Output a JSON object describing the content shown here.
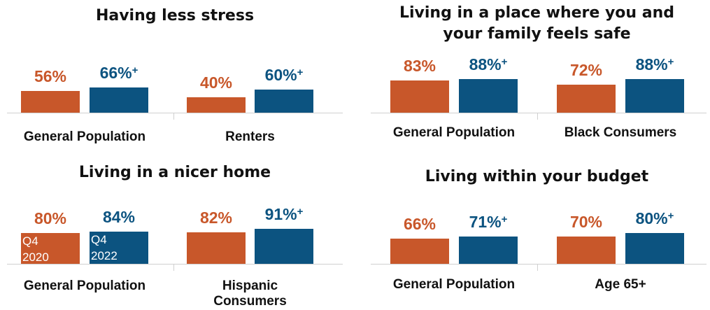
{
  "colors": {
    "q4_2020": "#c8572a",
    "q4_2022": "#0c5380"
  },
  "series": [
    {
      "name": "Q4 2020",
      "label_line1": "Q4",
      "label_line2": "2020"
    },
    {
      "name": "Q4 2022",
      "label_line1": "Q4",
      "label_line2": "2022"
    }
  ],
  "chart_data": [
    {
      "type": "bar",
      "title": "Having less stress",
      "categories": [
        "General Population",
        "Renters"
      ],
      "series": [
        {
          "name": "Q4 2020",
          "values": [
            56,
            40
          ],
          "labels": [
            "56%",
            "40%"
          ]
        },
        {
          "name": "Q4 2022",
          "values": [
            66,
            60
          ],
          "labels": [
            "66%",
            "60%"
          ],
          "marker": "+"
        }
      ]
    },
    {
      "type": "bar",
      "title": "Living in a place where you and your family feels safe",
      "title_lines": [
        "Living in a place where you and",
        "your family feels safe"
      ],
      "categories": [
        "General Population",
        "Black Consumers"
      ],
      "series": [
        {
          "name": "Q4 2020",
          "values": [
            83,
            72
          ],
          "labels": [
            "83%",
            "72%"
          ]
        },
        {
          "name": "Q4 2022",
          "values": [
            88,
            88
          ],
          "labels": [
            "88%",
            "88%"
          ],
          "marker": "+"
        }
      ]
    },
    {
      "type": "bar",
      "title": "Living in a nicer home",
      "categories": [
        "General Population",
        "Hispanic Consumers"
      ],
      "category_lines": [
        [
          "General Population"
        ],
        [
          "Hispanic",
          "Consumers"
        ]
      ],
      "series": [
        {
          "name": "Q4 2020",
          "values": [
            80,
            82
          ],
          "labels": [
            "80%",
            "82%"
          ]
        },
        {
          "name": "Q4 2022",
          "values": [
            84,
            91
          ],
          "labels": [
            "84%",
            "91%"
          ],
          "markers": [
            "",
            "+"
          ]
        }
      ]
    },
    {
      "type": "bar",
      "title": "Living within your budget",
      "categories": [
        "General Population",
        "Age 65+"
      ],
      "series": [
        {
          "name": "Q4 2020",
          "values": [
            66,
            70
          ],
          "labels": [
            "66%",
            "70%"
          ]
        },
        {
          "name": "Q4 2022",
          "values": [
            71,
            80
          ],
          "labels": [
            "71%",
            "80%"
          ],
          "marker": "+"
        }
      ]
    }
  ]
}
